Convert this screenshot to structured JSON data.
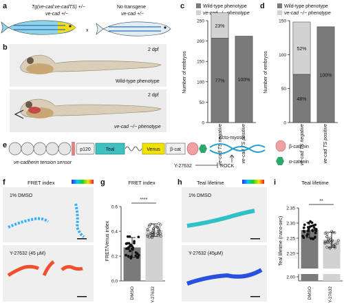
{
  "panel_labels": {
    "a": "a",
    "b": "b",
    "c": "c",
    "d": "d",
    "e": "e",
    "f": "f",
    "g": "g",
    "h": "h",
    "i": "i"
  },
  "panel_a": {
    "parent1_line1": "Tg(ve-cad:ve-cadTS) +/−",
    "parent1_line2": "ve-cad +/−",
    "cross": "x",
    "parent2_line1": "No transgene",
    "parent2_line2": "ve-cad +/−"
  },
  "panel_b": {
    "stage_top": "2 dpf",
    "caption_top": "Wild-type phenotype",
    "stage_bottom": "2 dpf",
    "caption_bottom": "ve-cad −/− phenotype"
  },
  "panel_e": {
    "p120": "p120",
    "teal": "Teal",
    "venus": "Venus",
    "bcat": "β-cat",
    "actomyosin": "Acto-myosin",
    "sensor_caption": "ve-cadherin tension sensor",
    "inhibitor": "Y-27632",
    "target": "ROCK",
    "legend_beta": "β-catenin",
    "legend_alpha": "α-catenin"
  },
  "panel_f": {
    "title": "FRET index",
    "top_label": "1% DMSO",
    "bottom_label": "Y-27632 (45 μM)"
  },
  "panel_h": {
    "title": "Teal lifetime",
    "top_label": "1% DMSO",
    "bottom_label": "Y-27632 (45μM)"
  },
  "colors": {
    "dark_bar": "#7a7a7a",
    "light_bar": "#d2d2d2",
    "teal": "#3fbfbf",
    "venus": "#f2e200",
    "beta_catenin": "#f0a0a0",
    "alpha_catenin": "#2ea86a"
  },
  "chart_data": [
    {
      "id": "c",
      "type": "bar",
      "stacked": true,
      "ylabel": "Number of embryos",
      "ylim": [
        0,
        250
      ],
      "yticks": [
        0,
        50,
        100,
        150,
        200,
        250
      ],
      "categories": [
        "ve-cad TS negative",
        "ve-cad TS positive"
      ],
      "legend": [
        "Wild-type phenotype",
        "ve-cad −/− phenotype"
      ],
      "legend_position": "top",
      "series": [
        {
          "name": "Wild-type phenotype",
          "values": [
            207,
            212
          ],
          "labels": [
            "77%",
            "100%"
          ]
        },
        {
          "name": "ve-cad −/− phenotype",
          "values": [
            62,
            0
          ],
          "labels": [
            "23%",
            ""
          ]
        }
      ]
    },
    {
      "id": "d",
      "type": "bar",
      "stacked": true,
      "ylabel": "Number of embryos",
      "ylim": [
        0,
        150
      ],
      "yticks": [
        0,
        50,
        100,
        150
      ],
      "categories": [
        "ve-cad TS negative",
        "ve-cad TS positive"
      ],
      "legend": [
        "Wild-type phenotype",
        "ve-cad −/− phenotype"
      ],
      "legend_position": "top",
      "series": [
        {
          "name": "Wild-type phenotype",
          "values": [
            71,
            141
          ],
          "labels": [
            "48%",
            "100%"
          ]
        },
        {
          "name": "ve-cad −/− phenotype",
          "values": [
            77,
            0
          ],
          "labels": [
            "52%",
            ""
          ]
        }
      ]
    },
    {
      "id": "g",
      "type": "bar",
      "title": "FRET index",
      "ylabel": "FRET/Venus index",
      "ylim": [
        0.0,
        0.6
      ],
      "yticks": [
        "0.0",
        "0.2",
        "0.4",
        "0.6"
      ],
      "categories": [
        "DMSO",
        "Y-27632"
      ],
      "values": [
        0.27,
        0.41
      ],
      "errors": [
        0.08,
        0.05
      ],
      "significance": "****"
    },
    {
      "id": "i",
      "type": "bar",
      "title": "Teal lifetime",
      "ylabel": "Teal lifetime (nano-sec)",
      "ylim": [
        2.0,
        2.35
      ],
      "yticks": [
        "2.00",
        "2.20",
        "2.25",
        "2.30",
        "2.35"
      ],
      "axis_break": [
        0.0,
        2.15
      ],
      "categories": [
        "DMSO",
        "Y-27632"
      ],
      "values": [
        2.277,
        2.245
      ],
      "errors": [
        0.025,
        0.025
      ],
      "significance": "**"
    }
  ]
}
